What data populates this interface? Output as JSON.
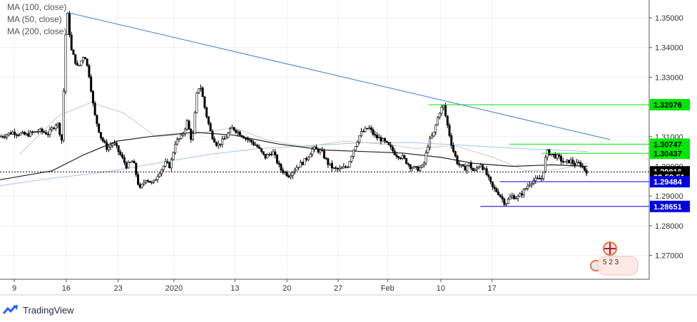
{
  "legend": {
    "items": [
      "MA (100, close)",
      "MA (50, close)",
      "MA (200, close)"
    ]
  },
  "branding": {
    "name": "TradingView"
  },
  "events_badge": {
    "label": "5 2  3"
  },
  "chart_data": {
    "type": "candlestick",
    "y_axis": {
      "position": "right",
      "range": [
        1.262,
        1.356
      ],
      "ticks": [
        1.35,
        1.34,
        1.33,
        1.31,
        1.29,
        1.28,
        1.27
      ],
      "tick_labels": [
        "1.35000",
        "1.34000",
        "1.33000",
        "1.31000",
        "1.29000",
        "1.28000",
        "1.27000"
      ],
      "partial_label": "1.30000"
    },
    "x_axis": {
      "tick_labels": [
        "9",
        "16",
        "23",
        "2020",
        "13",
        "20",
        "27",
        "Feb",
        "10",
        "17"
      ],
      "tick_positions": [
        0.022,
        0.102,
        0.182,
        0.268,
        0.362,
        0.442,
        0.521,
        0.597,
        0.679,
        0.758
      ]
    },
    "grid": true,
    "price_tags": [
      {
        "value": "1.32076",
        "price": 1.32076,
        "color": "#00e600",
        "text_color": "#000000"
      },
      {
        "value": "1.30747",
        "price": 1.30747,
        "color": "#00e600",
        "text_color": "#000000"
      },
      {
        "value": "1.30437",
        "price": 1.30437,
        "color": "#00e600",
        "text_color": "#000000"
      },
      {
        "value": "1.29816",
        "price": 1.29816,
        "color": "#000000",
        "text_color": "#ffffff"
      },
      {
        "value": "02:58:51",
        "price": 1.2964,
        "color": "#000000",
        "text_color": "#ffffff"
      },
      {
        "value": "1.29484",
        "price": 1.29484,
        "color": "#0000dd",
        "text_color": "#ffffff"
      },
      {
        "value": "1.28651",
        "price": 1.28651,
        "color": "#0000dd",
        "text_color": "#ffffff"
      }
    ],
    "horizontal_lines": [
      {
        "price": 1.32076,
        "from": 0.66,
        "color": "#00e600"
      },
      {
        "price": 1.30747,
        "from": 0.785,
        "color": "#00e600"
      },
      {
        "price": 1.30437,
        "from": 0.835,
        "color": "#00e600"
      },
      {
        "price": 1.29484,
        "from": 0.77,
        "color": "#0000dd"
      },
      {
        "price": 1.28651,
        "from": 0.74,
        "color": "#0000dd"
      },
      {
        "price": 1.29816,
        "from": 0.0,
        "color": "#000000",
        "dashed": true
      }
    ],
    "trendline": {
      "from": [
        0.104,
        1.3518
      ],
      "to": [
        0.94,
        1.309
      ],
      "color": "#3d7fd6"
    },
    "price_path": [
      [
        0.0,
        1.31
      ],
      [
        0.02,
        1.3115
      ],
      [
        0.04,
        1.3105
      ],
      [
        0.06,
        1.312
      ],
      [
        0.075,
        1.311
      ],
      [
        0.088,
        1.315
      ],
      [
        0.096,
        1.308
      ],
      [
        0.1,
        1.342
      ],
      [
        0.104,
        1.351
      ],
      [
        0.11,
        1.339
      ],
      [
        0.12,
        1.333
      ],
      [
        0.13,
        1.338
      ],
      [
        0.138,
        1.33
      ],
      [
        0.145,
        1.318
      ],
      [
        0.155,
        1.31
      ],
      [
        0.165,
        1.306
      ],
      [
        0.175,
        1.308
      ],
      [
        0.185,
        1.304
      ],
      [
        0.195,
        1.3
      ],
      [
        0.205,
        1.302
      ],
      [
        0.215,
        1.292
      ],
      [
        0.225,
        1.296
      ],
      [
        0.235,
        1.294
      ],
      [
        0.245,
        1.298
      ],
      [
        0.255,
        1.301
      ],
      [
        0.262,
        1.3
      ],
      [
        0.27,
        1.308
      ],
      [
        0.28,
        1.31
      ],
      [
        0.288,
        1.315
      ],
      [
        0.296,
        1.308
      ],
      [
        0.303,
        1.324
      ],
      [
        0.308,
        1.328
      ],
      [
        0.316,
        1.319
      ],
      [
        0.325,
        1.311
      ],
      [
        0.335,
        1.307
      ],
      [
        0.345,
        1.309
      ],
      [
        0.358,
        1.313
      ],
      [
        0.37,
        1.311
      ],
      [
        0.382,
        1.309
      ],
      [
        0.395,
        1.307
      ],
      [
        0.408,
        1.303
      ],
      [
        0.42,
        1.305
      ],
      [
        0.432,
        1.299
      ],
      [
        0.445,
        1.297
      ],
      [
        0.458,
        1.3
      ],
      [
        0.47,
        1.302
      ],
      [
        0.482,
        1.306
      ],
      [
        0.495,
        1.305
      ],
      [
        0.505,
        1.301
      ],
      [
        0.515,
        1.299
      ],
      [
        0.525,
        1.299
      ],
      [
        0.535,
        1.3
      ],
      [
        0.545,
        1.306
      ],
      [
        0.555,
        1.311
      ],
      [
        0.568,
        1.313
      ],
      [
        0.578,
        1.31
      ],
      [
        0.588,
        1.309
      ],
      [
        0.598,
        1.307
      ],
      [
        0.61,
        1.304
      ],
      [
        0.62,
        1.303
      ],
      [
        0.632,
        1.3
      ],
      [
        0.642,
        1.299
      ],
      [
        0.652,
        1.3
      ],
      [
        0.66,
        1.308
      ],
      [
        0.668,
        1.311
      ],
      [
        0.676,
        1.318
      ],
      [
        0.683,
        1.3205
      ],
      [
        0.69,
        1.313
      ],
      [
        0.697,
        1.306
      ],
      [
        0.705,
        1.301
      ],
      [
        0.715,
        1.299
      ],
      [
        0.722,
        1.301
      ],
      [
        0.73,
        1.298
      ],
      [
        0.74,
        1.301
      ],
      [
        0.748,
        1.298
      ],
      [
        0.758,
        1.293
      ],
      [
        0.768,
        1.291
      ],
      [
        0.778,
        1.2875
      ],
      [
        0.788,
        1.29
      ],
      [
        0.798,
        1.2895
      ],
      [
        0.808,
        1.292
      ],
      [
        0.818,
        1.295
      ],
      [
        0.828,
        1.2955
      ],
      [
        0.835,
        1.296
      ],
      [
        0.842,
        1.305
      ],
      [
        0.85,
        1.304
      ],
      [
        0.86,
        1.303
      ],
      [
        0.87,
        1.301
      ],
      [
        0.878,
        1.302
      ],
      [
        0.886,
        1.3005
      ],
      [
        0.893,
        1.301
      ],
      [
        0.9,
        1.299
      ],
      [
        0.905,
        1.2982
      ]
    ],
    "ma_100": [
      [
        0.0,
        1.2955
      ],
      [
        0.08,
        1.2985
      ],
      [
        0.13,
        1.304
      ],
      [
        0.18,
        1.3085
      ],
      [
        0.23,
        1.31
      ],
      [
        0.3,
        1.3115
      ],
      [
        0.36,
        1.3105
      ],
      [
        0.43,
        1.3075
      ],
      [
        0.5,
        1.3055
      ],
      [
        0.56,
        1.305
      ],
      [
        0.62,
        1.3045
      ],
      [
        0.68,
        1.303
      ],
      [
        0.73,
        1.301
      ],
      [
        0.79,
        1.3
      ],
      [
        0.85,
        1.3005
      ],
      [
        0.905,
        1.3
      ]
    ],
    "ma_50": [
      [
        0.03,
        1.304
      ],
      [
        0.09,
        1.317
      ],
      [
        0.14,
        1.3215
      ],
      [
        0.19,
        1.318
      ],
      [
        0.24,
        1.31
      ],
      [
        0.3,
        1.311
      ],
      [
        0.36,
        1.313
      ],
      [
        0.41,
        1.309
      ],
      [
        0.47,
        1.3065
      ],
      [
        0.53,
        1.3085
      ],
      [
        0.59,
        1.3075
      ],
      [
        0.64,
        1.306
      ],
      [
        0.7,
        1.307
      ],
      [
        0.76,
        1.303
      ],
      [
        0.81,
        1.2985
      ],
      [
        0.86,
        1.299
      ],
      [
        0.905,
        1.301
      ]
    ],
    "ma_200": [
      [
        0.0,
        1.2935
      ],
      [
        0.08,
        1.296
      ],
      [
        0.16,
        1.298
      ],
      [
        0.24,
        1.301
      ],
      [
        0.32,
        1.304
      ],
      [
        0.4,
        1.306
      ],
      [
        0.48,
        1.307
      ],
      [
        0.56,
        1.308
      ],
      [
        0.64,
        1.308
      ],
      [
        0.72,
        1.307
      ],
      [
        0.8,
        1.306
      ],
      [
        0.86,
        1.3055
      ],
      [
        0.905,
        1.305
      ]
    ]
  }
}
